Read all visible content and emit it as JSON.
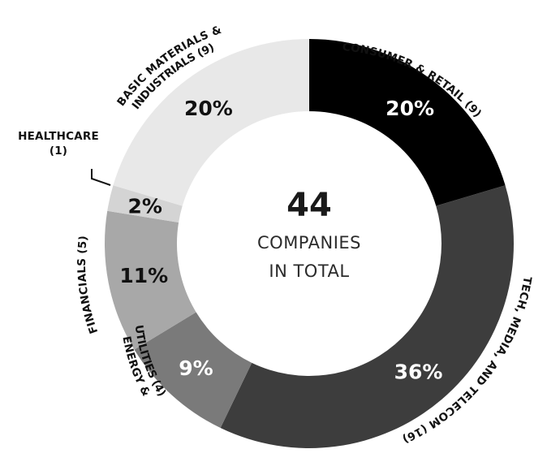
{
  "chart_data": {
    "type": "pie",
    "donut": true,
    "total_value": "44",
    "total_label_line1": "COMPANIES",
    "total_label_line2": "IN TOTAL",
    "slices": [
      {
        "category": "CONSUMER & RETAIL (9)",
        "count": 9,
        "percent_label": "20%",
        "value": 20,
        "color": "#000000",
        "label_color": "#ffffff"
      },
      {
        "category": "TECH, MEDIA, AND TELECOM (16)",
        "count": 16,
        "percent_label": "36%",
        "value": 36,
        "color": "#3d3d3d",
        "label_color": "#ffffff"
      },
      {
        "category": "ENERGY & UTILITIES (4)",
        "count": 4,
        "percent_label": "9%",
        "value": 9,
        "color": "#7a7a7a",
        "label_color": "#ffffff"
      },
      {
        "category": "FINANCIALS (5)",
        "count": 5,
        "percent_label": "11%",
        "value": 11,
        "color": "#a8a8a8",
        "label_color": "#111111"
      },
      {
        "category": "HEALTHCARE (1)",
        "count": 1,
        "percent_label": "2%",
        "value": 2,
        "color": "#d4d4d4",
        "label_color": "#111111"
      },
      {
        "category": "BASIC MATERIALS & INDUSTRIALS (9)",
        "count": 9,
        "percent_label": "20%",
        "value": 20,
        "color": "#e8e8e8",
        "label_color": "#111111"
      }
    ]
  },
  "labels": {
    "consumer": "CONSUMER & RETAIL (9)",
    "tech": "TECH, MEDIA, AND TELECOM (16)",
    "energy_line1": "ENERGY &",
    "energy_line2": "UTILITIES (4)",
    "financials": "FINANCIALS (5)",
    "healthcare_line1": "HEALTHCARE",
    "healthcare_line2": "(1)",
    "basic_line1": "BASIC MATERIALS &",
    "basic_line2": "INDUSTRIALS (9)"
  }
}
